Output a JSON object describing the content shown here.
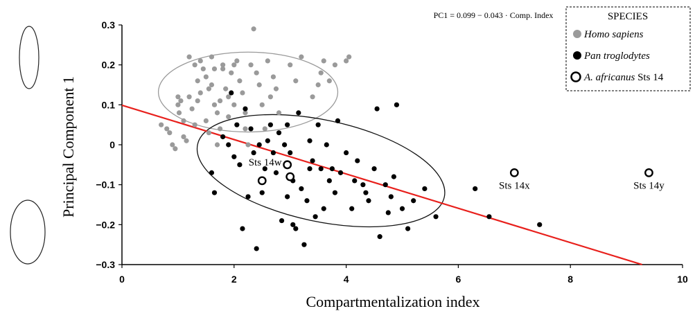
{
  "chart_data": {
    "type": "scatter",
    "title": "",
    "xlabel": "Compartmentalization index",
    "ylabel": "Principal Component 1",
    "xlim": [
      0,
      10
    ],
    "ylim": [
      -0.3,
      0.3
    ],
    "x_ticks": [
      0,
      2,
      4,
      6,
      8,
      10
    ],
    "y_ticks": [
      -0.3,
      -0.2,
      -0.1,
      0,
      0.1,
      0.2,
      0.3
    ],
    "x_tick_labels": [
      "0",
      "2",
      "4",
      "6",
      "8",
      "10"
    ],
    "y_tick_labels": [
      "−0.3",
      "−0.2",
      "−0.1",
      "0",
      "0.1",
      "0.2",
      "0.3"
    ],
    "grid": false,
    "equation": "PC1 = 0.099 − 0.043 · Comp. Index",
    "regression": {
      "intercept": 0.099,
      "slope": -0.043,
      "color": "#e8201c"
    },
    "legend": {
      "title": "SPECIES",
      "placement": "top-right",
      "entries": [
        {
          "label": "Homo sapiens",
          "marker": "grey-dot"
        },
        {
          "label": "Pan troglodytes",
          "marker": "black-dot"
        },
        {
          "label": "A. africanus",
          "suffix": " Sts 14",
          "marker": "open-circle"
        }
      ]
    },
    "series": [
      {
        "name": "Homo sapiens",
        "color": "#9a9a9a",
        "points": [
          [
            0.7,
            0.05
          ],
          [
            0.8,
            0.04
          ],
          [
            0.85,
            0.03
          ],
          [
            0.9,
            0.0
          ],
          [
            0.95,
            -0.01
          ],
          [
            1.0,
            0.12
          ],
          [
            1.0,
            0.1
          ],
          [
            1.02,
            0.08
          ],
          [
            1.05,
            0.11
          ],
          [
            1.1,
            0.06
          ],
          [
            1.1,
            0.02
          ],
          [
            1.15,
            0.01
          ],
          [
            1.2,
            0.22
          ],
          [
            1.2,
            0.12
          ],
          [
            1.25,
            0.09
          ],
          [
            1.3,
            0.2
          ],
          [
            1.3,
            0.05
          ],
          [
            1.35,
            0.11
          ],
          [
            1.4,
            0.13
          ],
          [
            1.4,
            0.21
          ],
          [
            1.45,
            0.19
          ],
          [
            1.5,
            0.17
          ],
          [
            1.5,
            0.06
          ],
          [
            1.55,
            0.03
          ],
          [
            1.6,
            0.22
          ],
          [
            1.6,
            0.15
          ],
          [
            1.65,
            0.1
          ],
          [
            1.7,
            0.08
          ],
          [
            1.7,
            0.0
          ],
          [
            1.75,
            0.04
          ],
          [
            1.8,
            0.19
          ],
          [
            1.8,
            0.2
          ],
          [
            1.85,
            0.14
          ],
          [
            1.9,
            0.12
          ],
          [
            1.9,
            0.07
          ],
          [
            1.95,
            0.18
          ],
          [
            2.0,
            0.2
          ],
          [
            2.0,
            0.1
          ],
          [
            2.05,
            0.21
          ],
          [
            2.1,
            0.16
          ],
          [
            2.15,
            0.13
          ],
          [
            2.2,
            0.08
          ],
          [
            2.2,
            0.04
          ],
          [
            2.3,
            0.2
          ],
          [
            2.35,
            0.29
          ],
          [
            2.4,
            0.18
          ],
          [
            2.45,
            0.15
          ],
          [
            2.5,
            0.1
          ],
          [
            2.55,
            0.04
          ],
          [
            2.6,
            0.21
          ],
          [
            2.65,
            0.12
          ],
          [
            2.7,
            0.17
          ],
          [
            2.8,
            0.08
          ],
          [
            3.0,
            0.2
          ],
          [
            3.1,
            0.16
          ],
          [
            3.2,
            0.22
          ],
          [
            3.4,
            0.12
          ],
          [
            3.5,
            0.15
          ],
          [
            3.55,
            0.18
          ],
          [
            3.6,
            0.21
          ],
          [
            3.7,
            0.16
          ],
          [
            3.8,
            0.2
          ],
          [
            4.0,
            0.21
          ],
          [
            4.05,
            0.22
          ],
          [
            1.55,
            0.14
          ],
          [
            1.75,
            0.11
          ],
          [
            2.25,
            0.0
          ],
          [
            1.35,
            0.16
          ],
          [
            1.65,
            0.19
          ],
          [
            2.75,
            0.14
          ]
        ]
      },
      {
        "name": "Pan troglodytes",
        "color": "#000000",
        "points": [
          [
            1.6,
            -0.07
          ],
          [
            1.65,
            -0.12
          ],
          [
            1.8,
            0.02
          ],
          [
            1.95,
            0.13
          ],
          [
            2.05,
            0.05
          ],
          [
            2.1,
            -0.05
          ],
          [
            2.15,
            -0.21
          ],
          [
            2.2,
            0.09
          ],
          [
            2.3,
            0.04
          ],
          [
            2.35,
            -0.02
          ],
          [
            2.4,
            -0.26
          ],
          [
            2.45,
            0.0
          ],
          [
            2.5,
            -0.12
          ],
          [
            2.6,
            0.01
          ],
          [
            2.65,
            0.05
          ],
          [
            2.7,
            -0.02
          ],
          [
            2.75,
            -0.07
          ],
          [
            2.8,
            0.03
          ],
          [
            2.85,
            -0.19
          ],
          [
            2.9,
            0.0
          ],
          [
            2.95,
            0.05
          ],
          [
            3.0,
            -0.02
          ],
          [
            3.05,
            -0.09
          ],
          [
            3.1,
            -0.21
          ],
          [
            3.15,
            0.08
          ],
          [
            3.2,
            -0.11
          ],
          [
            3.25,
            -0.25
          ],
          [
            3.3,
            -0.14
          ],
          [
            3.35,
            0.01
          ],
          [
            3.4,
            -0.04
          ],
          [
            3.45,
            -0.18
          ],
          [
            3.5,
            0.05
          ],
          [
            3.55,
            -0.06
          ],
          [
            3.6,
            -0.16
          ],
          [
            3.65,
            0.0
          ],
          [
            3.7,
            -0.09
          ],
          [
            3.8,
            -0.12
          ],
          [
            3.85,
            0.06
          ],
          [
            3.9,
            -0.07
          ],
          [
            4.0,
            -0.02
          ],
          [
            4.1,
            -0.16
          ],
          [
            4.15,
            -0.09
          ],
          [
            4.2,
            -0.04
          ],
          [
            4.3,
            -0.1
          ],
          [
            4.4,
            -0.14
          ],
          [
            4.5,
            -0.06
          ],
          [
            4.55,
            0.09
          ],
          [
            4.6,
            -0.23
          ],
          [
            4.7,
            -0.1
          ],
          [
            4.75,
            -0.17
          ],
          [
            4.8,
            -0.13
          ],
          [
            4.85,
            -0.08
          ],
          [
            4.9,
            0.1
          ],
          [
            5.0,
            -0.16
          ],
          [
            5.1,
            -0.21
          ],
          [
            5.2,
            -0.14
          ],
          [
            5.4,
            -0.11
          ],
          [
            5.6,
            -0.18
          ],
          [
            6.3,
            -0.11
          ],
          [
            6.55,
            -0.18
          ],
          [
            7.45,
            -0.2
          ],
          [
            2.25,
            -0.13
          ],
          [
            2.55,
            -0.06
          ],
          [
            2.95,
            -0.13
          ],
          [
            3.05,
            -0.2
          ],
          [
            3.35,
            -0.06
          ],
          [
            3.75,
            -0.06
          ],
          [
            4.35,
            -0.12
          ],
          [
            1.9,
            0.0
          ],
          [
            2.0,
            -0.03
          ]
        ]
      },
      {
        "name": "A. africanus Sts 14",
        "color": "#000000",
        "marker": "open",
        "points": [
          {
            "x": 2.5,
            "y": -0.09,
            "label": ""
          },
          {
            "x": 2.95,
            "y": -0.05,
            "label": "Sts 14w"
          },
          {
            "x": 3.0,
            "y": -0.08,
            "label": ""
          },
          {
            "x": 7.0,
            "y": -0.07,
            "label": "Sts 14x"
          },
          {
            "x": 9.4,
            "y": -0.07,
            "label": "Sts 14y"
          }
        ]
      }
    ],
    "ellipses": [
      {
        "name": "Homo sapiens",
        "color": "#9a9a9a",
        "cx": 2.25,
        "cy": 0.132,
        "rx": 1.6,
        "ry": 0.1,
        "rotate": 0
      },
      {
        "name": "Pan troglodytes",
        "color": "#111111",
        "cx": 3.55,
        "cy": -0.065,
        "rx": 2.25,
        "ry": 0.127,
        "rotate": 12
      }
    ]
  }
}
